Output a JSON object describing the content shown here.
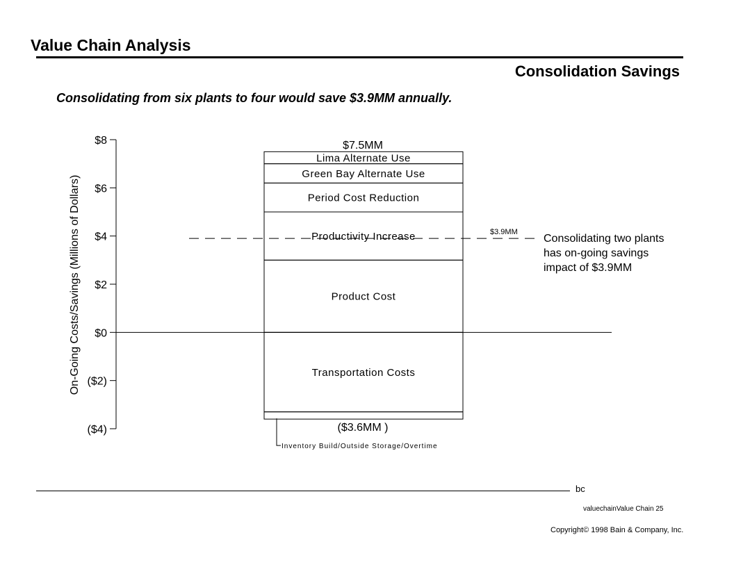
{
  "header": {
    "title": "Value Chain Analysis",
    "subtitle": "Consolidation Savings",
    "headline": "Consolidating from six plants to four would save $3.9MM annually."
  },
  "chart_data": {
    "type": "bar",
    "ylabel": "On-Going Costs/Savings (Millions of Dollars)",
    "ylim": [
      -4,
      8
    ],
    "ytick_values": [
      8,
      6,
      4,
      2,
      0,
      -2,
      -4
    ],
    "ytick_labels": [
      "$8",
      "$6",
      "$4",
      "$2",
      "$0",
      "($2)",
      "($4)"
    ],
    "total_label": "$7.5MM",
    "negative_label": "($3.6MM )",
    "segments": [
      {
        "name": "Lima Alternate Use",
        "low": 7.0,
        "high": 7.5
      },
      {
        "name": "Green Bay Alternate Use",
        "low": 6.2,
        "high": 7.0
      },
      {
        "name": "Period Cost Reduction",
        "low": 5.0,
        "high": 6.2
      },
      {
        "name": "Productivity Increase",
        "low": 3.0,
        "high": 5.0
      },
      {
        "name": "Product Cost",
        "low": 0,
        "high": 3.0
      },
      {
        "name": "Transportation Costs",
        "low": -3.3,
        "high": 0
      },
      {
        "name": "Inventory Build/Outside Storage/Overtime",
        "low": -3.6,
        "high": -3.3
      }
    ],
    "net_line": {
      "value": 3.9,
      "label": "$3.9MM"
    }
  },
  "callout": "Consolidating two plants has on-going savings impact of $3.9MM",
  "footer": {
    "code": "bc",
    "page_ref": "valuechainValue Chain  25",
    "copyright": "Copyright© 1998 Bain & Company, Inc."
  },
  "colors": {
    "ink": "#000000",
    "background": "#ffffff"
  }
}
